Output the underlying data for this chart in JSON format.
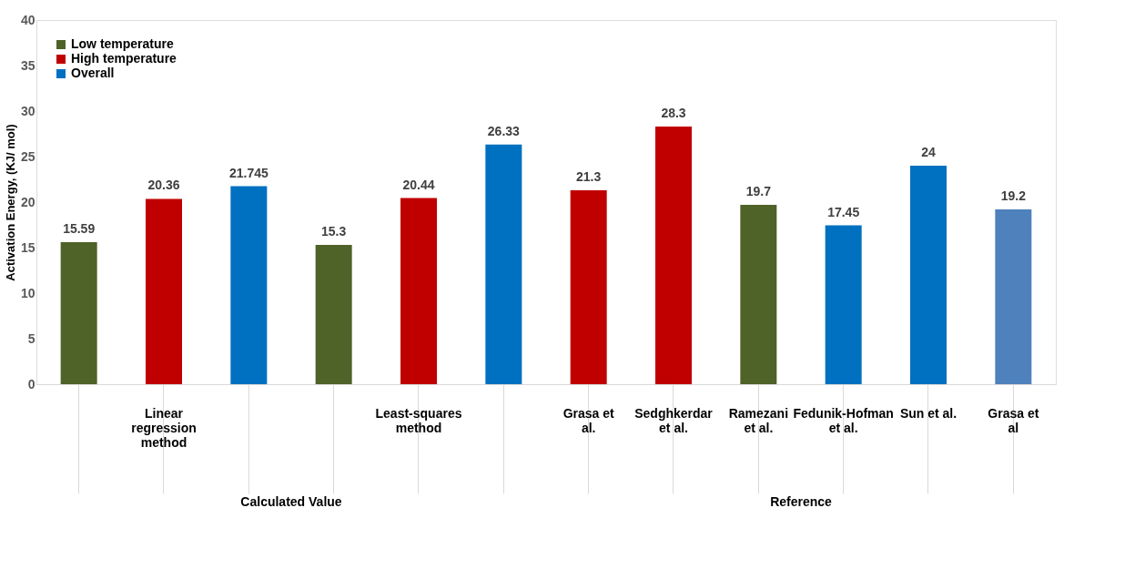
{
  "chart_data": {
    "type": "bar",
    "categories": [
      null,
      "Linear regression method",
      null,
      null,
      "Least-squares method",
      null,
      "Grasa et al.",
      "Sedghkerdar et al.",
      "Ramezani et al.",
      "Fedunik-Hofman et al.",
      "Sun et al.",
      "Grasa et al"
    ],
    "series": [
      {
        "name": "Low temperature",
        "color": "#4f6228",
        "values": [
          15.59,
          null,
          null,
          15.3,
          null,
          null,
          null,
          null,
          19.7,
          null,
          null,
          null
        ]
      },
      {
        "name": "High temperature",
        "color": "#c00000",
        "values": [
          null,
          20.36,
          null,
          null,
          20.44,
          null,
          21.3,
          28.3,
          null,
          null,
          null,
          null
        ]
      },
      {
        "name": "Overall",
        "color": "#0070c0",
        "values": [
          null,
          null,
          21.745,
          null,
          null,
          26.33,
          null,
          null,
          null,
          17.45,
          24,
          19.2
        ],
        "colors": [
          null,
          null,
          "#0070c0",
          null,
          null,
          "#0070c0",
          null,
          null,
          null,
          "#0070c0",
          "#0070c0",
          "#4f81bd"
        ]
      }
    ],
    "ylabel": "Activation Energy, (KJ/ mol)",
    "ylim": [
      0,
      40
    ],
    "yticks": [
      0,
      5,
      10,
      15,
      20,
      25,
      30,
      35,
      40
    ],
    "annotations": [
      "Calculated Value",
      "Reference"
    ],
    "data_labels": true,
    "legend": "top left",
    "grid": false
  }
}
